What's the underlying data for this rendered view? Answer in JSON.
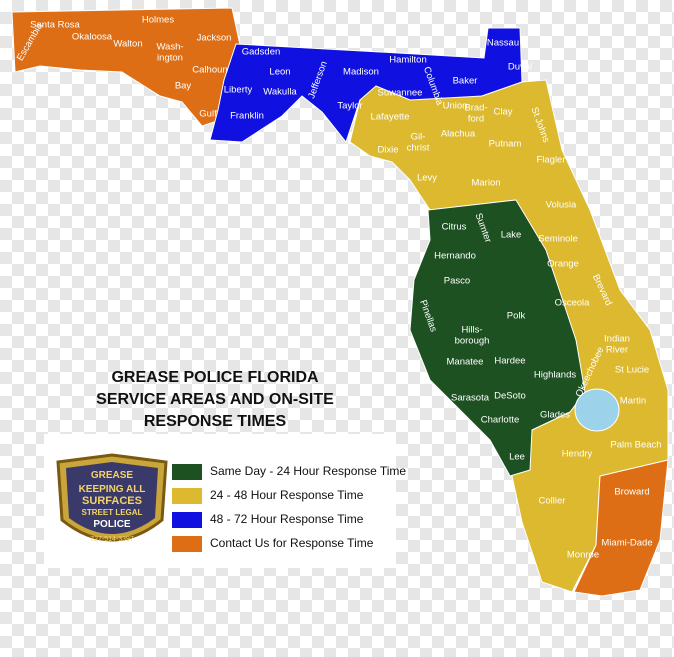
{
  "title": [
    "GREASE POLICE FLORIDA",
    "SERVICE AREAS AND ON-SITE",
    "RESPONSE TIMES"
  ],
  "legend": [
    {
      "label": "Same Day - 24 Hour Response Time",
      "color": "#1d5122"
    },
    {
      "label": "24 - 48 Hour Response Time",
      "color": "#dcb92e"
    },
    {
      "label": "48 - 72 Hour Response Time",
      "color": "#1010e0"
    },
    {
      "label": "Contact Us for Response Time",
      "color": "#dd6e15"
    }
  ],
  "badge": [
    "GREASE",
    "KEEPING ALL",
    "SURFACES",
    "STREET LEGAL",
    "POLICE",
    "727-514-3397"
  ],
  "counties": [
    "Escambia",
    "Santa Rosa",
    "Okaloosa",
    "Walton",
    "Holmes",
    [
      "Wash-",
      "ington"
    ],
    "Jackson",
    "Calhoun",
    "Bay",
    "Gulf",
    "Gadsden",
    "Leon",
    "Liberty",
    "Wakulla",
    "Franklin",
    "Jefferson",
    "Madison",
    "Taylor",
    "Hamilton",
    "Suwannee",
    "Columbia",
    "Baker",
    "Nassau",
    "Duval",
    "Union",
    [
      "Brad-",
      "ford"
    ],
    "Clay",
    "St Johns",
    "Lafayette",
    [
      "Gil-",
      "christ"
    ],
    "Alachua",
    "Putnam",
    "Flagler",
    "Dixie",
    "Levy",
    "Marion",
    "Volusia",
    "Citrus",
    "Sumter",
    "Lake",
    "Seminole",
    "Hernando",
    "Orange",
    "Brevard",
    "Pasco",
    "Osceola",
    "Pinellas",
    [
      "Hills-",
      "borough"
    ],
    "Polk",
    [
      "Indian",
      "River"
    ],
    "Okeechobee",
    "St Lucie",
    "Manatee",
    "Hardee",
    "Highlands",
    "Martin",
    "Sarasota",
    "DeSoto",
    "Glades",
    "Palm Beach",
    "Charlotte",
    "Hendry",
    "Lee",
    "Broward",
    "Collier",
    "Monroe",
    "Miami-Dade"
  ]
}
